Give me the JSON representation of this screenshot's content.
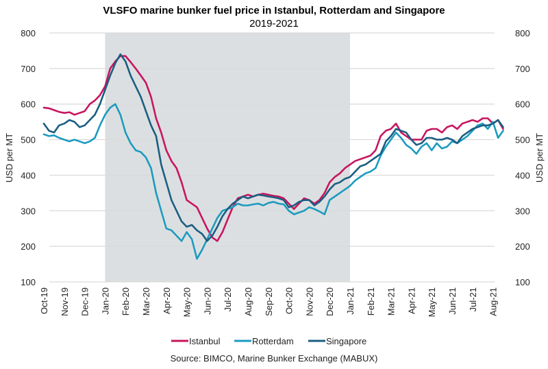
{
  "chart_data": {
    "type": "line",
    "title": "VLSFO marine bunker fuel price in Istanbul, Rotterdam and Singapore",
    "subtitle": "2019-2021",
    "xlabel": "",
    "ylabel": "USD per MT",
    "ylabel_right": "USD per MT",
    "ylim": [
      100,
      800
    ],
    "yticks": [
      100,
      200,
      300,
      400,
      500,
      600,
      700,
      800
    ],
    "grid": true,
    "legend_position": "bottom",
    "source": "Source: BIMCO, Marine Bunker Exchange (MABUX)",
    "x_tick_labels": [
      "Oct-19",
      "Nov-19",
      "Dec-19",
      "Jan-20",
      "Feb-20",
      "Mar-20",
      "Apr-20",
      "May-20",
      "Jun-20",
      "Jul-20",
      "Aug-20",
      "Sep-20",
      "Oct-20",
      "Nov-20",
      "Dec-20",
      "Jan-21",
      "Feb-21",
      "Mar-21",
      "Apr-21",
      "May-21",
      "Jun-21",
      "Jul-21",
      "Aug-21"
    ],
    "x_unit": "months since Oct-19",
    "shaded_region": {
      "from": "Jan-20",
      "to": "Jan-21",
      "color": "#dcdfe1"
    },
    "x": [
      0,
      0.25,
      0.5,
      0.75,
      1,
      1.25,
      1.5,
      1.75,
      2,
      2.25,
      2.5,
      2.75,
      3,
      3.25,
      3.5,
      3.75,
      4,
      4.25,
      4.5,
      4.75,
      5,
      5.25,
      5.5,
      5.75,
      6,
      6.25,
      6.5,
      6.75,
      7,
      7.25,
      7.5,
      7.75,
      8,
      8.25,
      8.5,
      8.75,
      9,
      9.25,
      9.5,
      9.75,
      10,
      10.25,
      10.5,
      10.75,
      11,
      11.25,
      11.5,
      11.75,
      12,
      12.25,
      12.5,
      12.75,
      13,
      13.25,
      13.5,
      13.75,
      14,
      14.25,
      14.5,
      14.75,
      15,
      15.25,
      15.5,
      15.75,
      16,
      16.25,
      16.5,
      16.75,
      17,
      17.25,
      17.5,
      17.75,
      18,
      18.25,
      18.5,
      18.75,
      19,
      19.25,
      19.5,
      19.75,
      20,
      20.25,
      20.5,
      20.75,
      21,
      21.25,
      21.5,
      21.75,
      22,
      22.25,
      22.5
    ],
    "series": [
      {
        "name": "Istanbul",
        "color": "#c8155f",
        "values": [
          590,
          588,
          583,
          578,
          575,
          577,
          570,
          575,
          580,
          600,
          610,
          625,
          650,
          700,
          720,
          735,
          735,
          718,
          700,
          680,
          660,
          620,
          560,
          520,
          470,
          440,
          420,
          380,
          330,
          320,
          310,
          280,
          250,
          225,
          215,
          240,
          275,
          310,
          335,
          340,
          345,
          340,
          345,
          348,
          345,
          342,
          340,
          335,
          320,
          305,
          320,
          335,
          330,
          320,
          330,
          350,
          380,
          395,
          405,
          420,
          430,
          440,
          445,
          450,
          455,
          470,
          510,
          525,
          530,
          545,
          520,
          510,
          500,
          500,
          500,
          525,
          530,
          530,
          520,
          535,
          540,
          530,
          545,
          550,
          555,
          550,
          560,
          560,
          545,
          555,
          530,
          515,
          505
        ]
      },
      {
        "name": "Rotterdam",
        "color": "#1b9bbf",
        "values": [
          515,
          510,
          512,
          505,
          500,
          495,
          500,
          495,
          490,
          495,
          505,
          540,
          570,
          590,
          600,
          570,
          520,
          490,
          470,
          465,
          450,
          420,
          350,
          300,
          250,
          245,
          230,
          215,
          240,
          220,
          165,
          190,
          220,
          250,
          280,
          300,
          305,
          310,
          320,
          315,
          315,
          318,
          320,
          315,
          322,
          325,
          320,
          318,
          300,
          290,
          295,
          300,
          310,
          305,
          298,
          290,
          330,
          340,
          350,
          360,
          370,
          385,
          395,
          405,
          410,
          420,
          455,
          480,
          500,
          520,
          505,
          485,
          475,
          460,
          480,
          490,
          470,
          490,
          475,
          480,
          495,
          490,
          500,
          510,
          525,
          540,
          545,
          530,
          550,
          505,
          525,
          490,
          460
        ]
      },
      {
        "name": "Singapore",
        "color": "#1b5e82",
        "values": [
          545,
          525,
          520,
          540,
          545,
          555,
          550,
          535,
          540,
          555,
          570,
          600,
          640,
          680,
          715,
          740,
          720,
          680,
          650,
          620,
          580,
          540,
          510,
          430,
          380,
          330,
          300,
          270,
          255,
          260,
          245,
          235,
          215,
          230,
          255,
          285,
          305,
          320,
          330,
          340,
          335,
          340,
          345,
          343,
          340,
          338,
          335,
          330,
          310,
          315,
          325,
          330,
          330,
          315,
          325,
          340,
          360,
          375,
          380,
          390,
          395,
          410,
          425,
          430,
          440,
          450,
          460,
          495,
          510,
          530,
          525,
          520,
          500,
          485,
          490,
          505,
          505,
          500,
          500,
          505,
          500,
          490,
          510,
          520,
          530,
          535,
          540,
          540,
          545,
          555,
          535,
          520,
          505
        ]
      }
    ]
  }
}
